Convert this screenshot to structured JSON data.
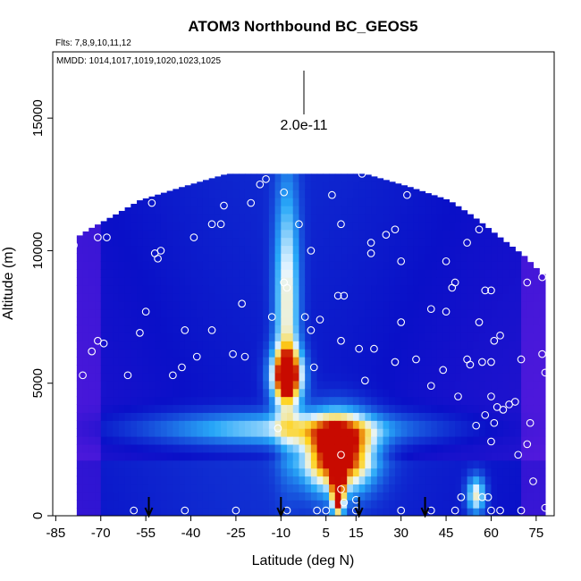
{
  "chart_data": {
    "type": "heatmap",
    "title": "ATOM3 Northbound BC_GEOS5",
    "subtitle_flights": "Flts: 7,8,9,10,11,12",
    "subtitle_dates": "MMDD: 1014,1017,1019,1020,1023,1025",
    "xlabel": "Latitude (deg N)",
    "ylabel": "Altitude (m)",
    "xlim": [
      -86,
      81
    ],
    "ylim": [
      0,
      17500
    ],
    "x_ticks": [
      -85,
      -70,
      -55,
      -40,
      -25,
      -10,
      5,
      15,
      30,
      45,
      60,
      75
    ],
    "y_ticks": [
      0,
      5000,
      10000,
      15000
    ],
    "scale_bar_label": "2.0e-11",
    "scale_bar_value": 2e-11,
    "colors": {
      "low": "#7a1ee8",
      "mid_low": "#0a10c8",
      "mid": "#28a8f8",
      "mid_high": "#e8f6ff",
      "high": "#ffd21a",
      "peak": "#c80a00"
    },
    "top_altitude_profile": [
      {
        "lat": -78,
        "alt": 10500
      },
      {
        "lat": -74,
        "alt": 10800
      },
      {
        "lat": -66,
        "alt": 11300
      },
      {
        "lat": -57,
        "alt": 11900
      },
      {
        "lat": -43,
        "alt": 12400
      },
      {
        "lat": -28,
        "alt": 12900
      },
      {
        "lat": 18,
        "alt": 12900
      },
      {
        "lat": 33,
        "alt": 12400
      },
      {
        "lat": 46,
        "alt": 11900
      },
      {
        "lat": 54,
        "alt": 11300
      },
      {
        "lat": 63,
        "alt": 10500
      },
      {
        "lat": 71,
        "alt": 9800
      },
      {
        "lat": 78,
        "alt": 9000
      }
    ],
    "plumes": [
      {
        "lat": 9,
        "alt": 2400,
        "lat_width": 11,
        "alt_width": 1300,
        "intensity": 1.0
      },
      {
        "lat": 9,
        "alt": 900,
        "lat_width": 2,
        "alt_width": 900,
        "intensity": 0.85
      },
      {
        "lat": -8,
        "alt": 5300,
        "lat_width": 5,
        "alt_width": 1000,
        "intensity": 0.85
      },
      {
        "lat": -8,
        "alt": 8000,
        "lat_width": 4,
        "alt_width": 4500,
        "intensity": 0.45
      },
      {
        "lat": -8,
        "alt": 3300,
        "lat_width": 45,
        "alt_width": 600,
        "intensity": 0.35
      },
      {
        "lat": 55,
        "alt": 800,
        "lat_width": 3,
        "alt_width": 700,
        "intensity": 0.45
      }
    ],
    "flight_tracks": [
      {
        "lat": -71,
        "alt": 6600
      },
      {
        "lat": -73,
        "alt": 6200
      },
      {
        "lat": -69,
        "alt": 6500
      },
      {
        "lat": -76,
        "alt": 5300
      },
      {
        "lat": -61,
        "alt": 5300
      },
      {
        "lat": -55,
        "alt": 7700
      },
      {
        "lat": -57,
        "alt": 6900
      },
      {
        "lat": -46,
        "alt": 5300
      },
      {
        "lat": -38,
        "alt": 6000
      },
      {
        "lat": -33,
        "alt": 7000
      },
      {
        "lat": -42,
        "alt": 7000
      },
      {
        "lat": -26,
        "alt": 6100
      },
      {
        "lat": -22,
        "alt": 6000
      },
      {
        "lat": -23,
        "alt": 8000
      },
      {
        "lat": -43,
        "alt": 5600
      },
      {
        "lat": -79,
        "alt": 10200
      },
      {
        "lat": -71,
        "alt": 10500
      },
      {
        "lat": -68,
        "alt": 10500
      },
      {
        "lat": -51,
        "alt": 9700
      },
      {
        "lat": -52,
        "alt": 9900
      },
      {
        "lat": -50,
        "alt": 10000
      },
      {
        "lat": -39,
        "alt": 10500
      },
      {
        "lat": -33,
        "alt": 11000
      },
      {
        "lat": -30,
        "alt": 11000
      },
      {
        "lat": -29,
        "alt": 11700
      },
      {
        "lat": -53,
        "alt": 11800
      },
      {
        "lat": -20,
        "alt": 11800
      },
      {
        "lat": -17,
        "alt": 12500
      },
      {
        "lat": -15,
        "alt": 12700
      },
      {
        "lat": -9,
        "alt": 12200
      },
      {
        "lat": 7,
        "alt": 12100
      },
      {
        "lat": 17,
        "alt": 12900
      },
      {
        "lat": 32,
        "alt": 12100
      },
      {
        "lat": 49,
        "alt": 12000
      },
      {
        "lat": 10,
        "alt": 11000
      },
      {
        "lat": -4,
        "alt": 11000
      },
      {
        "lat": 0,
        "alt": 10000
      },
      {
        "lat": 25,
        "alt": 10600
      },
      {
        "lat": 28,
        "alt": 10800
      },
      {
        "lat": 20,
        "alt": 10300
      },
      {
        "lat": 30,
        "alt": 9600
      },
      {
        "lat": 45,
        "alt": 9600
      },
      {
        "lat": 52,
        "alt": 10300
      },
      {
        "lat": 56,
        "alt": 10800
      },
      {
        "lat": 20,
        "alt": 9900
      },
      {
        "lat": -9,
        "alt": 8800
      },
      {
        "lat": -8,
        "alt": 8600
      },
      {
        "lat": 11,
        "alt": 8300
      },
      {
        "lat": 9,
        "alt": 8300
      },
      {
        "lat": 47,
        "alt": 8600
      },
      {
        "lat": 48,
        "alt": 8800
      },
      {
        "lat": 58,
        "alt": 8500
      },
      {
        "lat": 60,
        "alt": 8500
      },
      {
        "lat": 72,
        "alt": 8800
      },
      {
        "lat": 77,
        "alt": 9000
      },
      {
        "lat": -86,
        "alt": 7800
      },
      {
        "lat": -13,
        "alt": 7500
      },
      {
        "lat": -2,
        "alt": 7500
      },
      {
        "lat": 3,
        "alt": 7400
      },
      {
        "lat": 30,
        "alt": 7300
      },
      {
        "lat": 40,
        "alt": 7800
      },
      {
        "lat": 45,
        "alt": 7700
      },
      {
        "lat": 56,
        "alt": 7300
      },
      {
        "lat": 0,
        "alt": 7000
      },
      {
        "lat": 10,
        "alt": 6600
      },
      {
        "lat": 16,
        "alt": 6300
      },
      {
        "lat": 21,
        "alt": 6300
      },
      {
        "lat": 28,
        "alt": 5800
      },
      {
        "lat": 35,
        "alt": 5900
      },
      {
        "lat": 44,
        "alt": 5500
      },
      {
        "lat": 52,
        "alt": 5900
      },
      {
        "lat": 53,
        "alt": 5700
      },
      {
        "lat": 57,
        "alt": 5800
      },
      {
        "lat": 60,
        "alt": 5800
      },
      {
        "lat": 61,
        "alt": 6600
      },
      {
        "lat": 63,
        "alt": 6800
      },
      {
        "lat": 70,
        "alt": 5900
      },
      {
        "lat": 77,
        "alt": 6100
      },
      {
        "lat": 78,
        "alt": 5400
      },
      {
        "lat": 1,
        "alt": 5600
      },
      {
        "lat": 18,
        "alt": 5100
      },
      {
        "lat": 40,
        "alt": 4900
      },
      {
        "lat": 49,
        "alt": 4500
      },
      {
        "lat": 60,
        "alt": 4500
      },
      {
        "lat": 62,
        "alt": 4100
      },
      {
        "lat": 64,
        "alt": 4000
      },
      {
        "lat": 66,
        "alt": 4200
      },
      {
        "lat": 68,
        "alt": 4300
      },
      {
        "lat": 58,
        "alt": 3800
      },
      {
        "lat": 61,
        "alt": 3500
      },
      {
        "lat": 73,
        "alt": 3500
      },
      {
        "lat": 55,
        "alt": 3400
      },
      {
        "lat": -11,
        "alt": 3300
      },
      {
        "lat": 60,
        "alt": 2800
      },
      {
        "lat": 72,
        "alt": 2700
      },
      {
        "lat": 69,
        "alt": 2300
      },
      {
        "lat": 10,
        "alt": 2300
      },
      {
        "lat": 74,
        "alt": 1300
      },
      {
        "lat": 50,
        "alt": 700
      },
      {
        "lat": 57,
        "alt": 700
      },
      {
        "lat": 59,
        "alt": 700
      },
      {
        "lat": 10,
        "alt": 1000
      },
      {
        "lat": 15,
        "alt": 600
      },
      {
        "lat": 15,
        "alt": 200
      },
      {
        "lat": 40,
        "alt": 200
      },
      {
        "lat": -59,
        "alt": 200
      },
      {
        "lat": -25,
        "alt": 200
      },
      {
        "lat": -8,
        "alt": 200
      },
      {
        "lat": 30,
        "alt": 200
      },
      {
        "lat": 48,
        "alt": 200
      },
      {
        "lat": 60,
        "alt": 200
      },
      {
        "lat": 63,
        "alt": 200
      },
      {
        "lat": 70,
        "alt": 200
      },
      {
        "lat": 2,
        "alt": 200
      },
      {
        "lat": 5,
        "alt": 200
      },
      {
        "lat": 78,
        "alt": 300
      },
      {
        "lat": -42,
        "alt": 200
      },
      {
        "lat": 11,
        "alt": 500
      }
    ],
    "takeoff_arrows_lat": [
      -54,
      -10,
      16,
      38
    ]
  }
}
